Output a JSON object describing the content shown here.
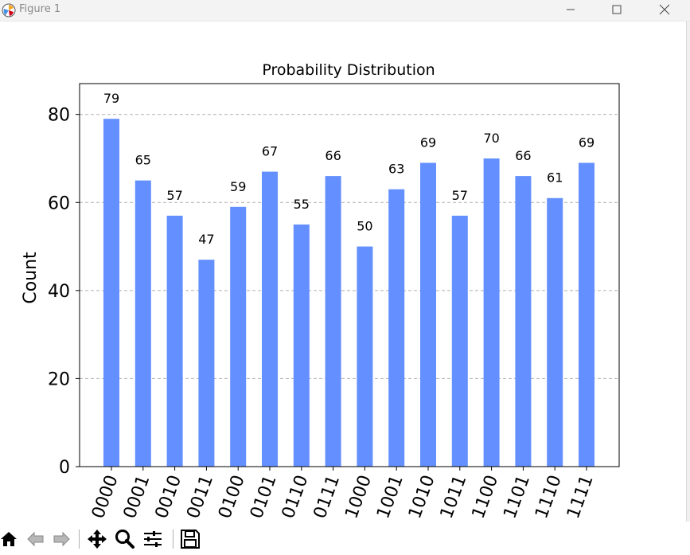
{
  "window": {
    "title": "Figure 1"
  },
  "toolbar": {
    "icons": [
      "home-icon",
      "back-icon",
      "forward-icon",
      "pan-icon",
      "zoom-icon",
      "subplots-icon",
      "save-icon"
    ]
  },
  "colors": {
    "bar": "#648fff",
    "grid": "#b0b0b0"
  },
  "chart_data": {
    "type": "bar",
    "title": "Probability Distribution",
    "xlabel": "",
    "ylabel": "Count",
    "categories": [
      "0000",
      "0001",
      "0010",
      "0011",
      "0100",
      "0101",
      "0110",
      "0111",
      "1000",
      "1001",
      "1010",
      "1011",
      "1100",
      "1101",
      "1110",
      "1111"
    ],
    "values": [
      79,
      65,
      57,
      47,
      59,
      67,
      55,
      66,
      50,
      63,
      69,
      57,
      70,
      66,
      61,
      69
    ],
    "yticks": [
      0,
      20,
      40,
      60,
      80
    ],
    "ylim": [
      0,
      87
    ],
    "grid": "y dashed",
    "x_tick_rotation": 70
  }
}
